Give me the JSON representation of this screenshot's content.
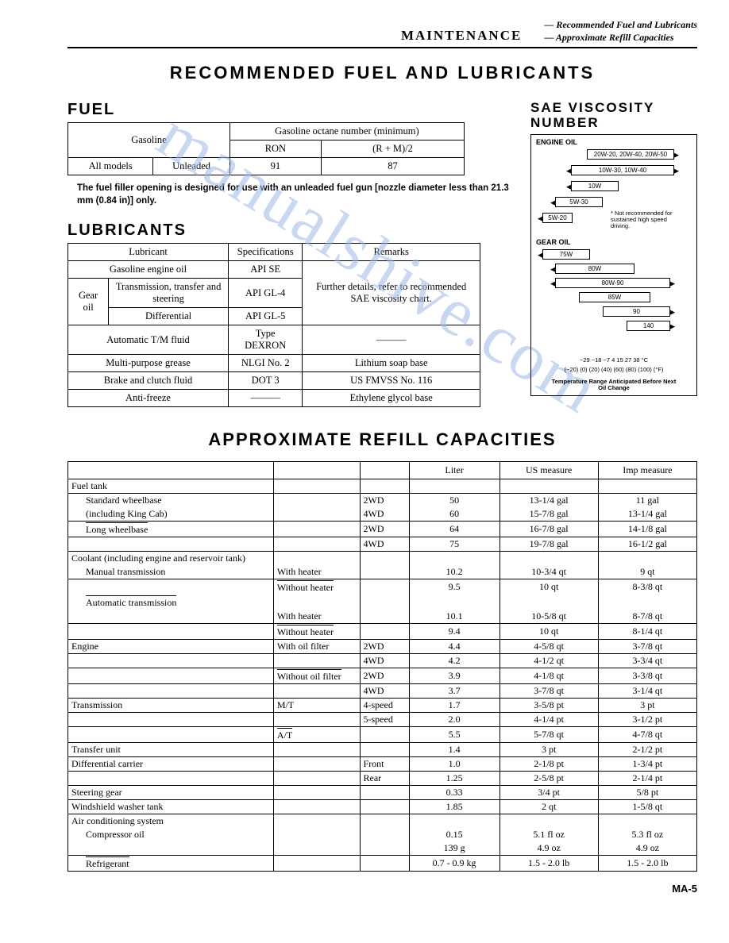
{
  "header": {
    "section": "MAINTENANCE",
    "sub1": "— Recommended Fuel and Lubricants",
    "sub2": "— Approximate Refill Capacities"
  },
  "title_main": "RECOMMENDED FUEL AND LUBRICANTS",
  "fuel": {
    "label": "FUEL",
    "col_gas": "Gasoline",
    "col_oct": "Gasoline octane number (minimum)",
    "ron": "RON",
    "rm2": "(R + M)/2",
    "row_model": "All models",
    "row_type": "Unleaded",
    "v_ron": "91",
    "v_rm2": "87",
    "note": "The fuel filler opening is designed for use with an unleaded fuel gun [nozzle diameter less than 21.3 mm (0.84 in)] only."
  },
  "lub": {
    "label": "LUBRICANTS",
    "h1": "Lubricant",
    "h2": "Specifications",
    "h3": "Remarks",
    "r1a": "Gasoline engine oil",
    "r1b": "API SE",
    "r2a": "Gear oil",
    "r2b": "Transmission, transfer and steering",
    "r2c": "API GL-4",
    "r3b": "Differential",
    "r3c": "API GL-5",
    "remarks": "Further details, refer to recommended SAE viscosity chart.",
    "r4a": "Automatic T/M fluid",
    "r4b": "Type DEXRON",
    "r4c": "———",
    "r5a": "Multi-purpose grease",
    "r5b": "NLGI No. 2",
    "r5c": "Lithium soap base",
    "r6a": "Brake and clutch fluid",
    "r6b": "DOT 3",
    "r6c": "US FMVSS No. 116",
    "r7a": "Anti-freeze",
    "r7b": "———",
    "r7c": "Ethylene glycol base"
  },
  "visc": {
    "label": "SAE VISCOSITY NUMBER",
    "engine": "ENGINE OIL",
    "gear": "GEAR OIL",
    "b1": "20W-20, 20W-40, 20W-50",
    "b2": "10W-30, 10W-40",
    "b3": "10W",
    "b4": "5W-30",
    "b5": "5W-20",
    "note": "* Not recommended for sustained high speed driving.",
    "g1": "75W",
    "g2": "80W",
    "g3": "80W-90",
    "g4": "85W",
    "g5": "90",
    "g6": "140",
    "scaleC": "−29  −18  −7   4   15   27   38  °C",
    "scaleF": "(−20) (0)  (20) (40) (60) (80) (100) (°F)",
    "caption": "Temperature Range Anticipated Before Next Oil Change"
  },
  "title2": "APPROXIMATE REFILL CAPACITIES",
  "cap": {
    "h1": "Liter",
    "h2": "US measure",
    "h3": "Imp measure",
    "rows": [
      {
        "a": "Fuel tank",
        "b": "",
        "c": "",
        "l": "",
        "u": "",
        "i": "",
        "cls": "hdr"
      },
      {
        "a": "Standard wheelbase",
        "b": "",
        "c": "2WD",
        "l": "50",
        "u": "13-1/4 gal",
        "i": "11 gal",
        "ind": 1
      },
      {
        "a": "(including King Cab)",
        "b": "",
        "c": "4WD",
        "l": "60",
        "u": "15-7/8 gal",
        "i": "13-1/4 gal",
        "ind": 1,
        "nobt": 1
      },
      {
        "a": "Long wheelbase",
        "b": "",
        "c": "2WD",
        "l": "64",
        "u": "16-7/8 gal",
        "i": "14-1/8 gal",
        "ind": 1,
        "ovl": 1
      },
      {
        "a": "",
        "b": "",
        "c": "4WD",
        "l": "75",
        "u": "19-7/8 gal",
        "i": "16-1/2 gal",
        "nobt": 0
      },
      {
        "a": "Coolant (including engine and reservoir tank)",
        "b": "",
        "c": "",
        "l": "",
        "u": "",
        "i": ""
      },
      {
        "a": "Manual transmission",
        "b": "With heater",
        "c": "",
        "l": "10.2",
        "u": "10-3/4 qt",
        "i": "9 qt",
        "ind": 1,
        "nobt": 1
      },
      {
        "a": "",
        "b": "Without heater",
        "c": "",
        "l": "9.5",
        "u": "10 qt",
        "i": "8-3/8 qt",
        "ovlb": 1
      },
      {
        "a": "Automatic transmission",
        "b": "",
        "c": "",
        "l": "",
        "u": "",
        "i": "",
        "ind": 1,
        "ovl": 1,
        "nobt": 1
      },
      {
        "a": "",
        "b": "With heater",
        "c": "",
        "l": "10.1",
        "u": "10-5/8 qt",
        "i": "8-7/8 qt",
        "nobt": 1
      },
      {
        "a": "",
        "b": "Without heater",
        "c": "",
        "l": "9.4",
        "u": "10 qt",
        "i": "8-1/4 qt",
        "ovlb": 1
      },
      {
        "a": "Engine",
        "b": "With oil filter",
        "c": "2WD",
        "l": "4.4",
        "u": "4-5/8 qt",
        "i": "3-7/8 qt"
      },
      {
        "a": "",
        "b": "",
        "c": "4WD",
        "l": "4.2",
        "u": "4-1/2 qt",
        "i": "3-3/4 qt"
      },
      {
        "a": "",
        "b": "Without oil filter",
        "c": "2WD",
        "l": "3.9",
        "u": "4-1/8 qt",
        "i": "3-3/8 qt",
        "ovlb": 1
      },
      {
        "a": "",
        "b": "",
        "c": "4WD",
        "l": "3.7",
        "u": "3-7/8 qt",
        "i": "3-1/4 qt"
      },
      {
        "a": "Transmission",
        "b": "M/T",
        "c": "4-speed",
        "l": "1.7",
        "u": "3-5/8 pt",
        "i": "3 pt"
      },
      {
        "a": "",
        "b": "",
        "c": "5-speed",
        "l": "2.0",
        "u": "4-1/4 pt",
        "i": "3-1/2 pt"
      },
      {
        "a": "",
        "b": "A/T",
        "c": "",
        "l": "5.5",
        "u": "5-7/8 qt",
        "i": "4-7/8 qt",
        "ovlb": 1
      },
      {
        "a": "Transfer unit",
        "b": "",
        "c": "",
        "l": "1.4",
        "u": "3 pt",
        "i": "2-1/2 pt"
      },
      {
        "a": "Differential carrier",
        "b": "",
        "c": "Front",
        "l": "1.0",
        "u": "2-1/8 pt",
        "i": "1-3/4 pt"
      },
      {
        "a": "",
        "b": "",
        "c": "Rear",
        "l": "1.25",
        "u": "2-5/8 pt",
        "i": "2-1/4 pt"
      },
      {
        "a": "Steering gear",
        "b": "",
        "c": "",
        "l": "0.33",
        "u": "3/4 pt",
        "i": "5/8 pt"
      },
      {
        "a": "Windshield washer tank",
        "b": "",
        "c": "",
        "l": "1.85",
        "u": "2 qt",
        "i": "1-5/8 qt"
      },
      {
        "a": "Air conditioning system",
        "b": "",
        "c": "",
        "l": "",
        "u": "",
        "i": ""
      },
      {
        "a": "Compressor oil",
        "b": "",
        "c": "",
        "l": "0.15",
        "u": "5.1 fl oz",
        "i": "5.3 fl oz",
        "ind": 1,
        "nobt": 1
      },
      {
        "a": "",
        "b": "",
        "c": "",
        "l": "139 g",
        "u": "4.9 oz",
        "i": "4.9 oz",
        "nobt": 1
      },
      {
        "a": "Refrigerant",
        "b": "",
        "c": "",
        "l": "0.7 - 0.9 kg",
        "u": "1.5 - 2.0 lb",
        "i": "1.5 - 2.0 lb",
        "ind": 1,
        "ovl": 1
      }
    ]
  },
  "footer": "MA-5",
  "watermark": "manualshive.com"
}
